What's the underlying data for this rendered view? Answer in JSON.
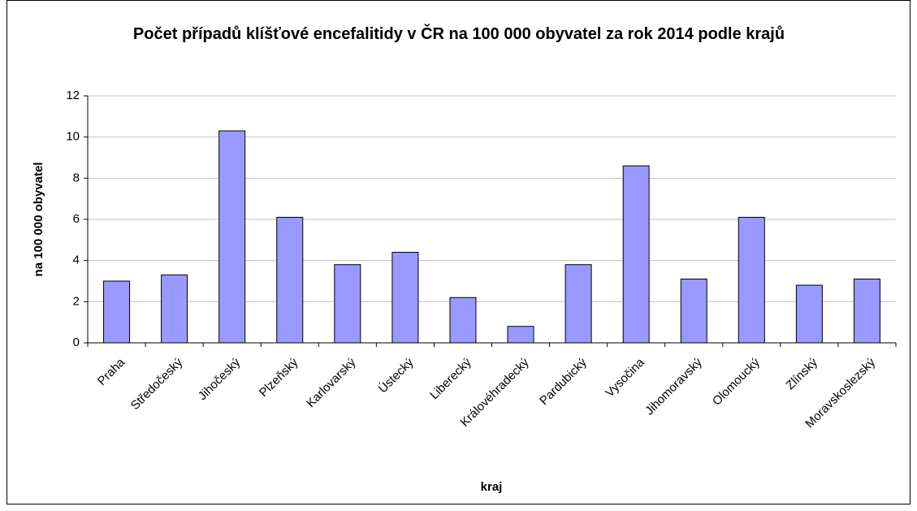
{
  "chart_data": {
    "type": "bar",
    "title": "Počet případů klíšťové encefalitidy v ČR na 100 000 obyvatel za rok 2014 podle krajů",
    "x_label": "kraj",
    "y_label": "na 100 000 obyvatel",
    "categories": [
      "Praha",
      "Středočeský",
      "Jihočeský",
      "Plzeňský",
      "Karlovarský",
      "Ústecký",
      "Liberecký",
      "Královéhradecký",
      "Pardubický",
      "Vysočina",
      "Jihomoravský",
      "Olomoucký",
      "Zlínský",
      "Moravskoslezský"
    ],
    "values": [
      3.0,
      3.3,
      10.3,
      6.1,
      3.8,
      4.4,
      2.2,
      0.8,
      3.8,
      8.6,
      3.1,
      6.1,
      2.8,
      3.1
    ],
    "color": "#9999ff",
    "ylim": [
      0,
      12
    ],
    "yticks": [
      0,
      2,
      4,
      6,
      8,
      10,
      12
    ],
    "grid": true
  }
}
